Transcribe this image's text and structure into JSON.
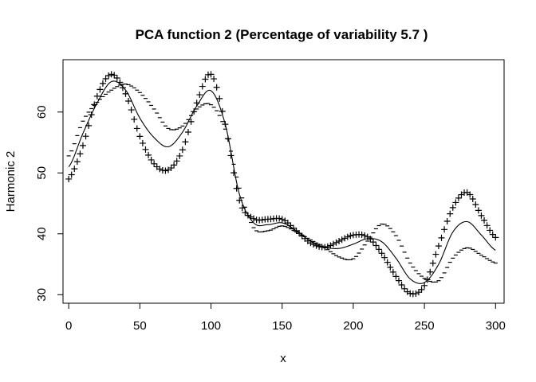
{
  "chart_data": {
    "type": "line",
    "title": "PCA function 2 (Percentage of variability 5.7 )",
    "xlabel": "x",
    "ylabel": "Harmonic 2",
    "xlim": [
      -4,
      306
    ],
    "ylim": [
      28.6,
      68.6
    ],
    "x_ticks": [
      0,
      50,
      100,
      150,
      200,
      250,
      300
    ],
    "y_ticks": [
      30,
      40,
      50,
      60
    ],
    "box": true,
    "grid": false,
    "series": [
      {
        "style": "line",
        "x": [
          0,
          10,
          20,
          30,
          40,
          50,
          60,
          70,
          80,
          90,
          100,
          110,
          120,
          130,
          140,
          150,
          160,
          170,
          180,
          190,
          200,
          210,
          220,
          230,
          240,
          250,
          260,
          270,
          280,
          290,
          300
        ],
        "y": [
          51.0,
          56.5,
          61.5,
          65.0,
          63.6,
          59.0,
          55.8,
          54.3,
          56.7,
          61.0,
          63.5,
          58.0,
          46.5,
          41.8,
          41.5,
          41.8,
          40.5,
          38.8,
          37.8,
          37.6,
          38.3,
          39.2,
          38.7,
          36.0,
          32.6,
          32.0,
          35.0,
          40.3,
          42.0,
          39.8,
          37.3
        ]
      },
      {
        "style": "plus",
        "x": [
          0,
          10,
          20,
          30,
          40,
          50,
          60,
          70,
          80,
          90,
          100,
          110,
          120,
          130,
          140,
          150,
          160,
          170,
          180,
          190,
          200,
          210,
          220,
          230,
          240,
          250,
          260,
          270,
          280,
          290,
          300
        ],
        "y": [
          49.0,
          54.5,
          62.6,
          66.2,
          63.0,
          56.0,
          51.5,
          50.5,
          53.8,
          61.5,
          66.2,
          58.0,
          45.5,
          42.5,
          42.4,
          42.4,
          40.5,
          38.5,
          37.8,
          38.8,
          39.8,
          39.5,
          36.8,
          33.0,
          30.2,
          31.5,
          38.0,
          44.3,
          46.8,
          43.0,
          39.4
        ]
      },
      {
        "style": "minus",
        "x": [
          0,
          10,
          20,
          30,
          40,
          50,
          60,
          70,
          80,
          90,
          100,
          110,
          120,
          130,
          140,
          150,
          160,
          170,
          180,
          190,
          200,
          210,
          220,
          230,
          240,
          250,
          260,
          270,
          280,
          290,
          300
        ],
        "y": [
          52.8,
          58.5,
          61.6,
          63.6,
          64.6,
          63.2,
          60.5,
          57.3,
          57.7,
          60.5,
          61.2,
          57.2,
          47.5,
          41.0,
          40.5,
          41.3,
          40.3,
          39.0,
          37.7,
          36.2,
          35.9,
          38.8,
          41.6,
          39.7,
          35.2,
          32.7,
          32.3,
          36.0,
          37.7,
          36.5,
          35.2
        ]
      }
    ]
  }
}
